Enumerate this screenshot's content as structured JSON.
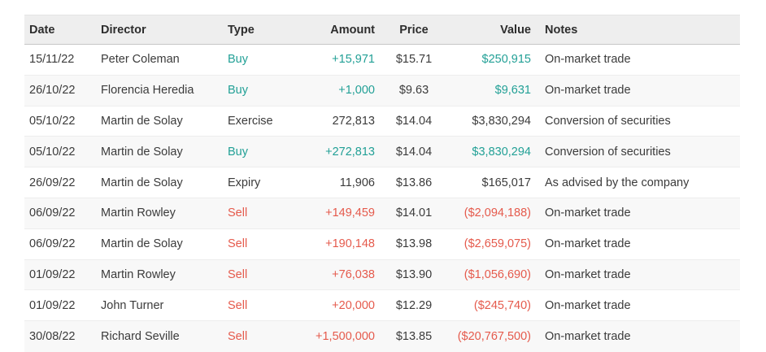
{
  "table": {
    "columns": [
      {
        "key": "date",
        "label": "Date"
      },
      {
        "key": "director",
        "label": "Director"
      },
      {
        "key": "type",
        "label": "Type"
      },
      {
        "key": "amount",
        "label": "Amount"
      },
      {
        "key": "price",
        "label": "Price"
      },
      {
        "key": "value",
        "label": "Value"
      },
      {
        "key": "notes",
        "label": "Notes"
      }
    ],
    "rows": [
      {
        "date": "15/11/22",
        "director": "Peter Coleman",
        "type": "Buy",
        "kind": "buy",
        "amount": "+15,971",
        "price": "$15.71",
        "value": "$250,915",
        "value_kind": "buy",
        "notes": "On-market trade"
      },
      {
        "date": "26/10/22",
        "director": "Florencia Heredia",
        "type": "Buy",
        "kind": "buy",
        "amount": "+1,000",
        "price": "$9.63",
        "value": "$9,631",
        "value_kind": "buy",
        "notes": "On-market trade"
      },
      {
        "date": "05/10/22",
        "director": "Martin de Solay",
        "type": "Exercise",
        "kind": "neutral",
        "amount": "272,813",
        "price": "$14.04",
        "value": "$3,830,294",
        "value_kind": "neutral",
        "notes": "Conversion of securities"
      },
      {
        "date": "05/10/22",
        "director": "Martin de Solay",
        "type": "Buy",
        "kind": "buy",
        "amount": "+272,813",
        "price": "$14.04",
        "value": "$3,830,294",
        "value_kind": "buy",
        "notes": "Conversion of securities"
      },
      {
        "date": "26/09/22",
        "director": "Martin de Solay",
        "type": "Expiry",
        "kind": "neutral",
        "amount": "11,906",
        "price": "$13.86",
        "value": "$165,017",
        "value_kind": "neutral",
        "notes": "As advised by the company"
      },
      {
        "date": "06/09/22",
        "director": "Martin Rowley",
        "type": "Sell",
        "kind": "sell",
        "amount": "+149,459",
        "price": "$14.01",
        "value": "($2,094,188)",
        "value_kind": "sell",
        "notes": "On-market trade"
      },
      {
        "date": "06/09/22",
        "director": "Martin de Solay",
        "type": "Sell",
        "kind": "sell",
        "amount": "+190,148",
        "price": "$13.98",
        "value": "($2,659,075)",
        "value_kind": "sell",
        "notes": "On-market trade"
      },
      {
        "date": "01/09/22",
        "director": "Martin Rowley",
        "type": "Sell",
        "kind": "sell",
        "amount": "+76,038",
        "price": "$13.90",
        "value": "($1,056,690)",
        "value_kind": "sell",
        "notes": "On-market trade"
      },
      {
        "date": "01/09/22",
        "director": "John Turner",
        "type": "Sell",
        "kind": "sell",
        "amount": "+20,000",
        "price": "$12.29",
        "value": "($245,740)",
        "value_kind": "sell",
        "notes": "On-market trade"
      },
      {
        "date": "30/08/22",
        "director": "Richard Seville",
        "type": "Sell",
        "kind": "sell",
        "amount": "+1,500,000",
        "price": "$13.85",
        "value": "($20,767,500)",
        "value_kind": "sell",
        "notes": "On-market trade"
      }
    ],
    "colors": {
      "buy": "#22a096",
      "sell": "#e55a4c",
      "text": "#3b3b3b",
      "header_bg": "#eeeeee",
      "row_alt_bg": "#f8f8f8"
    }
  }
}
